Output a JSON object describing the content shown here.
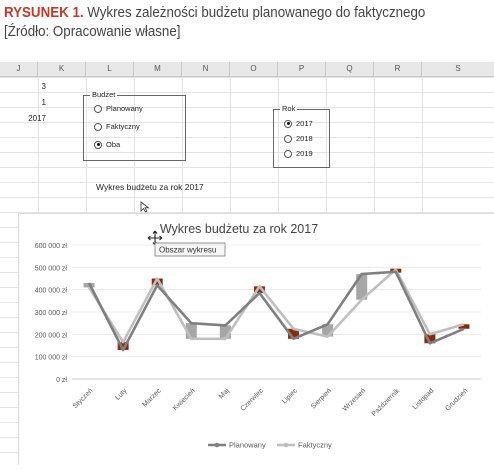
{
  "caption": {
    "label": "RYSUNEK 1.",
    "text": " Wykres zależności budżetu planowanego do faktycznego [Źródło: Opracowanie własne]"
  },
  "columns": [
    "J",
    "K",
    "L",
    "M",
    "N",
    "O",
    "P",
    "Q",
    "R",
    "S"
  ],
  "cells": {
    "r1": "3",
    "r2": "1",
    "r3": "2017"
  },
  "budzet": {
    "title": "Budżet",
    "options": [
      "Planowany",
      "Faktyczny",
      "Oba"
    ],
    "selected": 2
  },
  "rok": {
    "title": "Rok",
    "options": [
      "2017",
      "2018",
      "2019"
    ],
    "selected": 0
  },
  "sheet_chart_title": "Wykres budżetu za rok 2017",
  "tooltip": "Obszar wykresu",
  "colors": {
    "planowany": "#7f7f7f",
    "faktyczny": "#bfbfbf",
    "up_bar": "#a6a6a6",
    "down_bar": "#8b2a0a",
    "caption_label": "#c0392b"
  },
  "chart_data": {
    "type": "line",
    "title": "Wykres budżetu za rok 2017",
    "categories": [
      "Styczeń",
      "Luty",
      "Marzec",
      "Kwiecień",
      "Maj",
      "Czerwiec",
      "Lipiec",
      "Sierpień",
      "Wrzesień",
      "Październik",
      "Listopad",
      "Grudzień"
    ],
    "series": [
      {
        "name": "Planowany",
        "values": [
          430000,
          130000,
          420000,
          250000,
          240000,
          385000,
          180000,
          245000,
          470000,
          480000,
          160000,
          225000
        ]
      },
      {
        "name": "Faktyczny",
        "values": [
          410000,
          165000,
          450000,
          180000,
          180000,
          415000,
          225000,
          190000,
          355000,
          490000,
          200000,
          245000
        ]
      }
    ],
    "yticks": [
      "0 zł",
      "100 000 zł",
      "200 000 zł",
      "300 000 zł",
      "400 000 zł",
      "500 000 zł",
      "600 000 zł"
    ],
    "ylim": [
      0,
      600000
    ],
    "legend": "bottom",
    "grid": true
  }
}
